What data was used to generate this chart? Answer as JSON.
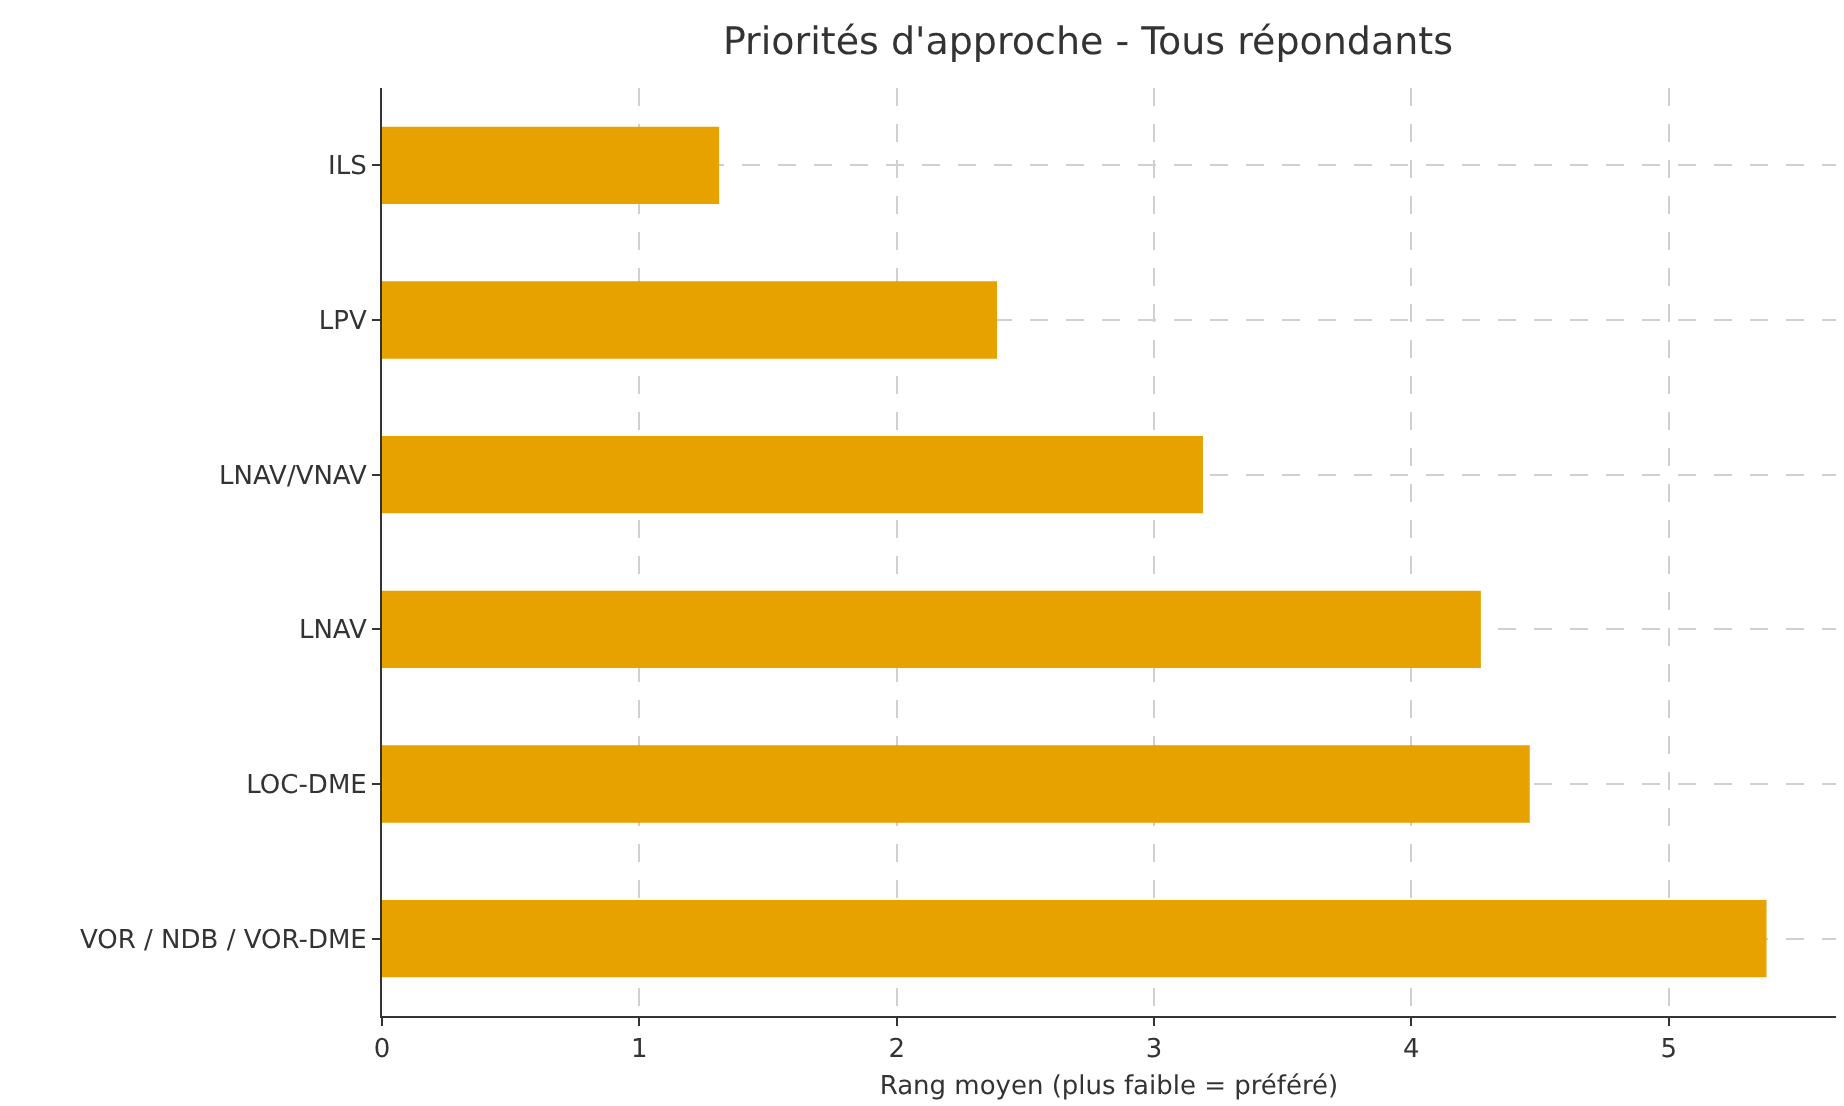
{
  "chart_data": {
    "type": "bar",
    "orientation": "horizontal",
    "title": "Priorités d'approche - Tous répondants",
    "xlabel": "Rang moyen (plus faible = préféré)",
    "categories": [
      "ILS",
      "LPV",
      "LNAV/VNAV",
      "LNAV",
      "LOC-DME",
      "VOR / NDB / VOR-DME"
    ],
    "values": [
      1.31,
      2.39,
      3.19,
      4.27,
      4.46,
      5.38
    ],
    "color": "#e8a200",
    "xlim": [
      0,
      5.65
    ],
    "xticks": [
      0,
      1,
      2,
      3,
      4,
      5
    ],
    "grid": true
  }
}
